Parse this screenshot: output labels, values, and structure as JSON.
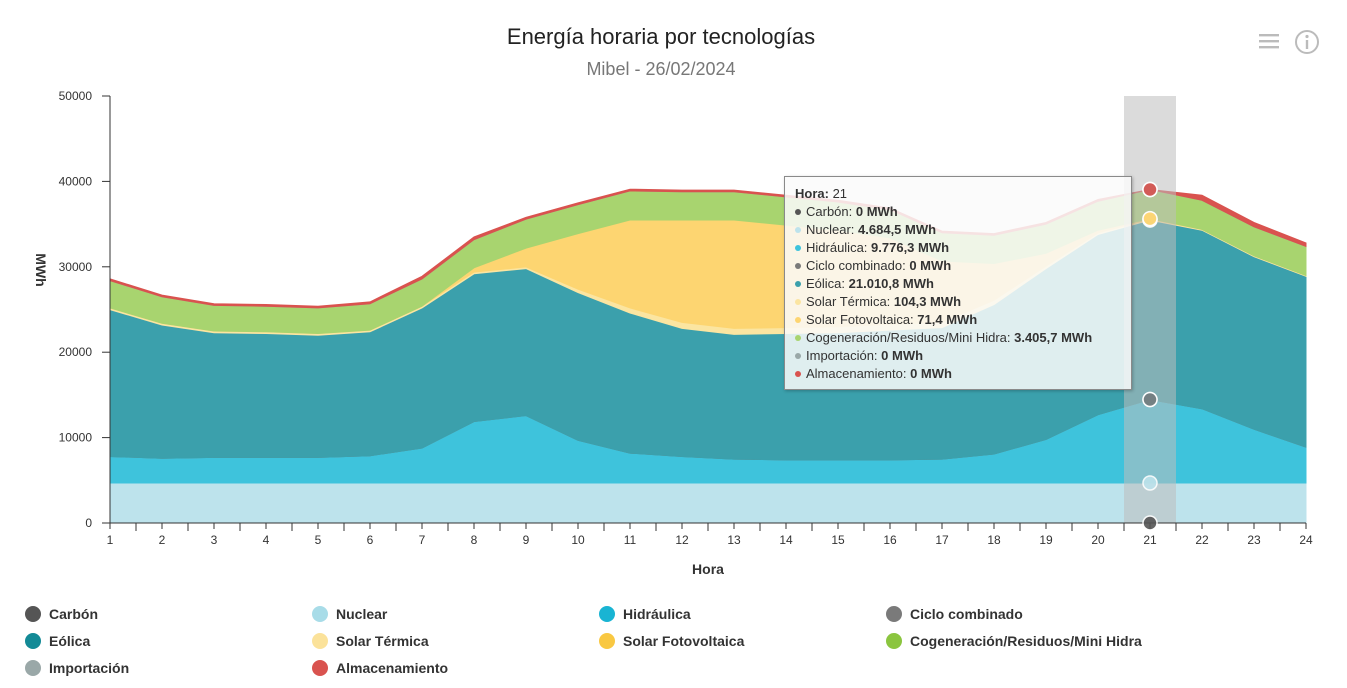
{
  "header": {
    "title": "Energía horaria por tecnologías",
    "subtitle": "Mibel - 26/02/2024",
    "menu_icon": "hamburger-menu-icon",
    "info_icon": "info-circle-icon"
  },
  "colors": {
    "carbon": "#555555",
    "nuclear": "#bde3ec",
    "hidraulica": "#3ec3dc",
    "ciclo": "#7a7a7a",
    "eolica": "#3ba0ac",
    "solar_termica": "#fbe5a1",
    "solar_fv": "#fdd571",
    "cogeneracion": "#a8d46f",
    "importacion": "#9aa8a8",
    "almacenamiento": "#d9534f"
  },
  "chart_data": {
    "type": "area",
    "stacked": true,
    "title": "Energía horaria por tecnologías",
    "subtitle": "Mibel - 26/02/2024",
    "xlabel": "Hora",
    "ylabel": "MWh",
    "x": [
      1,
      2,
      3,
      4,
      5,
      6,
      7,
      8,
      9,
      10,
      11,
      12,
      13,
      14,
      15,
      16,
      17,
      18,
      19,
      20,
      21,
      22,
      23,
      24
    ],
    "ylim": [
      0,
      50000
    ],
    "yticks": [
      0,
      10000,
      20000,
      30000,
      40000,
      50000
    ],
    "ytick_labels": [
      "0",
      "10000",
      "20000",
      "30000",
      "40000",
      "50000"
    ],
    "grid": false,
    "highlight_x": 21,
    "series": [
      {
        "key": "carbon",
        "name": "Carbón",
        "values": [
          0,
          0,
          0,
          0,
          0,
          0,
          0,
          0,
          0,
          0,
          0,
          0,
          0,
          0,
          0,
          0,
          0,
          0,
          0,
          0,
          0,
          0,
          0,
          0
        ]
      },
      {
        "key": "nuclear",
        "name": "Nuclear",
        "values": [
          4684.5,
          4684.5,
          4684.5,
          4684.5,
          4684.5,
          4684.5,
          4684.5,
          4684.5,
          4684.5,
          4684.5,
          4684.5,
          4684.5,
          4684.5,
          4684.5,
          4684.5,
          4684.5,
          4684.5,
          4684.5,
          4684.5,
          4684.5,
          4684.5,
          4684.5,
          4684.5,
          4684.5
        ]
      },
      {
        "key": "hidraulica",
        "name": "Hidráulica",
        "values": [
          3100,
          2900,
          3000,
          3000,
          3000,
          3200,
          4100,
          7200,
          7900,
          5000,
          3500,
          3100,
          2800,
          2700,
          2700,
          2700,
          2800,
          3400,
          5100,
          8000,
          9776.3,
          8700,
          6300,
          4200
        ]
      },
      {
        "key": "ciclo",
        "name": "Ciclo combinado",
        "values": [
          0,
          0,
          0,
          0,
          0,
          0,
          0,
          0,
          0,
          0,
          0,
          0,
          0,
          0,
          0,
          0,
          0,
          0,
          0,
          0,
          0,
          0,
          0,
          0
        ]
      },
      {
        "key": "eolica",
        "name": "Eólica",
        "values": [
          17200,
          15600,
          14600,
          14500,
          14300,
          14500,
          16400,
          17300,
          17200,
          17300,
          16400,
          15000,
          14600,
          14800,
          14900,
          15200,
          15400,
          17500,
          20000,
          21100,
          21010.8,
          20900,
          20200,
          20000
        ]
      },
      {
        "key": "solar_termica",
        "name": "Solar Térmica",
        "values": [
          200,
          200,
          200,
          200,
          200,
          200,
          200,
          200,
          200,
          400,
          600,
          700,
          700,
          700,
          700,
          700,
          600,
          500,
          300,
          200,
          104.3,
          100,
          100,
          100
        ]
      },
      {
        "key": "solar_fv",
        "name": "Solar Fotovoltaica",
        "values": [
          0,
          0,
          0,
          0,
          0,
          0,
          0,
          500,
          2200,
          6500,
          10300,
          12000,
          12700,
          12000,
          11300,
          10100,
          7200,
          4300,
          1500,
          300,
          71.4,
          0,
          0,
          0
        ]
      },
      {
        "key": "cogeneracion",
        "name": "Cogeneración/Residuos/Mini Hidra",
        "values": [
          3200,
          3100,
          3000,
          3000,
          3000,
          3100,
          3200,
          3300,
          3400,
          3400,
          3400,
          3300,
          3300,
          3300,
          3300,
          3300,
          3300,
          3300,
          3400,
          3400,
          3405.7,
          3400,
          3400,
          3400
        ]
      },
      {
        "key": "importacion",
        "name": "Importación",
        "values": [
          0,
          0,
          0,
          0,
          0,
          0,
          0,
          0,
          0,
          0,
          0,
          0,
          0,
          0,
          0,
          0,
          0,
          0,
          0,
          0,
          0,
          0,
          0,
          0
        ]
      },
      {
        "key": "almacenamiento",
        "name": "Almacenamiento",
        "values": [
          200,
          200,
          200,
          200,
          200,
          200,
          300,
          300,
          200,
          200,
          200,
          200,
          200,
          200,
          200,
          200,
          200,
          200,
          200,
          200,
          0,
          600,
          500,
          400
        ]
      }
    ]
  },
  "tooltip": {
    "header_label": "Hora:",
    "header_value": "21",
    "rows": [
      {
        "key": "carbon",
        "label": "Carbón:",
        "value": "0 MWh"
      },
      {
        "key": "nuclear",
        "label": "Nuclear:",
        "value": "4.684,5 MWh"
      },
      {
        "key": "hidraulica",
        "label": "Hidráulica:",
        "value": "9.776,3 MWh"
      },
      {
        "key": "ciclo",
        "label": "Ciclo combinado:",
        "value": "0 MWh"
      },
      {
        "key": "eolica",
        "label": "Eólica:",
        "value": "21.010,8 MWh"
      },
      {
        "key": "solar_termica",
        "label": "Solar Térmica:",
        "value": "104,3 MWh"
      },
      {
        "key": "solar_fv",
        "label": "Solar Fotovoltaica:",
        "value": "71,4 MWh"
      },
      {
        "key": "cogeneracion",
        "label": "Cogeneración/Residuos/Mini Hidra:",
        "value": "3.405,7 MWh"
      },
      {
        "key": "importacion",
        "label": "Importación:",
        "value": "0 MWh"
      },
      {
        "key": "almacenamiento",
        "label": "Almacenamiento:",
        "value": "0 MWh"
      }
    ]
  },
  "legend": [
    {
      "key": "carbon",
      "label": "Carbón",
      "legend_color": "#555555"
    },
    {
      "key": "nuclear",
      "label": "Nuclear",
      "legend_color": "#a8dce8"
    },
    {
      "key": "hidraulica",
      "label": "Hidráulica",
      "legend_color": "#19b4d3"
    },
    {
      "key": "ciclo",
      "label": "Ciclo combinado",
      "legend_color": "#7a7a7a"
    },
    {
      "key": "eolica",
      "label": "Eólica",
      "legend_color": "#138a96"
    },
    {
      "key": "solar_termica",
      "label": "Solar Térmica",
      "legend_color": "#fbe29a"
    },
    {
      "key": "solar_fv",
      "label": "Solar Fotovoltaica",
      "legend_color": "#f9c842"
    },
    {
      "key": "cogeneracion",
      "label": "Cogeneración/Residuos/Mini Hidra",
      "legend_color": "#8bc53f"
    },
    {
      "key": "importacion",
      "label": "Importación",
      "legend_color": "#9aa8a8"
    },
    {
      "key": "almacenamiento",
      "label": "Almacenamiento",
      "legend_color": "#d9534f"
    }
  ]
}
